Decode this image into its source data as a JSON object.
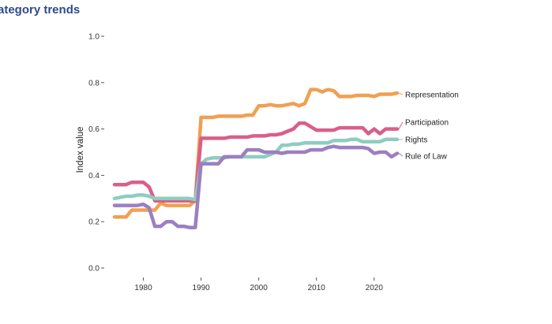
{
  "chart_data": {
    "type": "line",
    "title": "ategory trends",
    "xlabel": "",
    "ylabel": "Index value",
    "xlim": [
      1975,
      2024
    ],
    "ylim": [
      0,
      1
    ],
    "x_ticks": [
      1980,
      1990,
      2000,
      2010,
      2020
    ],
    "y_ticks": [
      {
        "value": 0.0,
        "label": "0.0"
      },
      {
        "value": 0.2,
        "label": "0.2"
      },
      {
        "value": 0.4,
        "label": "0.4"
      },
      {
        "value": 0.6,
        "label": "0.6"
      },
      {
        "value": 0.8,
        "label": "0.8"
      },
      {
        "value": 1.0,
        "label": "1.0"
      }
    ],
    "grid": false,
    "legend": "right, labels at line ends",
    "x": [
      1975,
      1976,
      1977,
      1978,
      1979,
      1980,
      1981,
      1982,
      1983,
      1984,
      1985,
      1986,
      1987,
      1988,
      1989,
      1990,
      1991,
      1992,
      1993,
      1994,
      1995,
      1996,
      1997,
      1998,
      1999,
      2000,
      2001,
      2002,
      2003,
      2004,
      2005,
      2006,
      2007,
      2008,
      2009,
      2010,
      2011,
      2012,
      2013,
      2014,
      2015,
      2016,
      2017,
      2018,
      2019,
      2020,
      2021,
      2022,
      2023,
      2024
    ],
    "series": [
      {
        "name": "Representation",
        "color": "#f0a052",
        "values": [
          0.22,
          0.22,
          0.22,
          0.25,
          0.25,
          0.25,
          0.25,
          0.25,
          0.28,
          0.27,
          0.27,
          0.27,
          0.27,
          0.27,
          0.29,
          0.65,
          0.65,
          0.65,
          0.655,
          0.655,
          0.655,
          0.655,
          0.655,
          0.66,
          0.66,
          0.7,
          0.7,
          0.705,
          0.7,
          0.7,
          0.705,
          0.71,
          0.7,
          0.71,
          0.77,
          0.77,
          0.76,
          0.77,
          0.765,
          0.74,
          0.74,
          0.74,
          0.745,
          0.745,
          0.745,
          0.74,
          0.75,
          0.75,
          0.75,
          0.755
        ]
      },
      {
        "name": "Participation",
        "color": "#d95f8a",
        "values": [
          0.36,
          0.36,
          0.36,
          0.37,
          0.37,
          0.37,
          0.35,
          0.29,
          0.29,
          0.29,
          0.29,
          0.29,
          0.29,
          0.29,
          0.29,
          0.56,
          0.56,
          0.56,
          0.56,
          0.56,
          0.565,
          0.565,
          0.565,
          0.565,
          0.57,
          0.57,
          0.57,
          0.575,
          0.575,
          0.58,
          0.59,
          0.6,
          0.625,
          0.625,
          0.61,
          0.595,
          0.595,
          0.595,
          0.595,
          0.605,
          0.605,
          0.605,
          0.605,
          0.605,
          0.58,
          0.6,
          0.58,
          0.6,
          0.6,
          0.6
        ]
      },
      {
        "name": "Rights",
        "color": "#8ecdc0",
        "values": [
          0.3,
          0.305,
          0.31,
          0.31,
          0.315,
          0.315,
          0.31,
          0.3,
          0.3,
          0.3,
          0.3,
          0.3,
          0.3,
          0.3,
          0.295,
          0.45,
          0.47,
          0.475,
          0.475,
          0.475,
          0.48,
          0.48,
          0.48,
          0.48,
          0.48,
          0.48,
          0.48,
          0.49,
          0.5,
          0.53,
          0.53,
          0.535,
          0.535,
          0.54,
          0.54,
          0.54,
          0.54,
          0.54,
          0.55,
          0.55,
          0.55,
          0.555,
          0.555,
          0.545,
          0.545,
          0.545,
          0.545,
          0.555,
          0.555,
          0.555
        ]
      },
      {
        "name": "Rule of Law",
        "color": "#9c7fc0",
        "values": [
          0.27,
          0.27,
          0.27,
          0.27,
          0.27,
          0.275,
          0.26,
          0.18,
          0.18,
          0.2,
          0.2,
          0.18,
          0.18,
          0.175,
          0.175,
          0.45,
          0.45,
          0.45,
          0.45,
          0.48,
          0.48,
          0.48,
          0.48,
          0.51,
          0.51,
          0.51,
          0.5,
          0.5,
          0.5,
          0.495,
          0.5,
          0.5,
          0.5,
          0.5,
          0.51,
          0.51,
          0.51,
          0.52,
          0.525,
          0.52,
          0.52,
          0.52,
          0.52,
          0.52,
          0.515,
          0.495,
          0.5,
          0.5,
          0.48,
          0.495
        ]
      }
    ]
  }
}
